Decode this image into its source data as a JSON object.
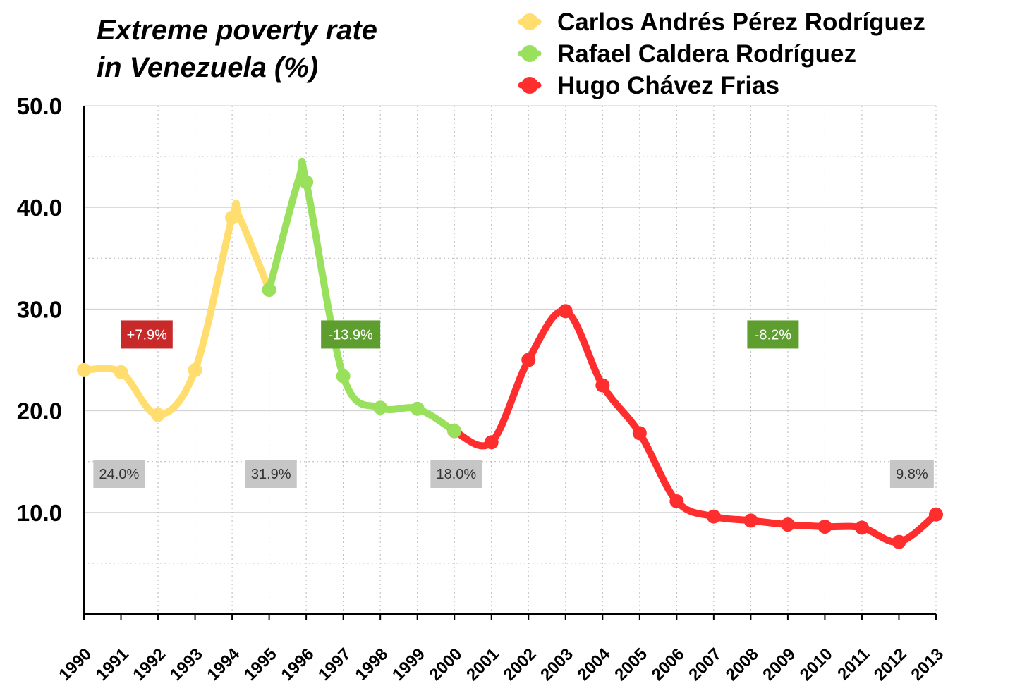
{
  "chart_data": {
    "type": "line",
    "title": "Extreme poverty rate",
    "subtitle": "in Venezuela (%)",
    "x": [
      1990,
      1991,
      1992,
      1993,
      1994,
      1995,
      1996,
      1997,
      1998,
      1999,
      2000,
      2001,
      2002,
      2003,
      2004,
      2005,
      2006,
      2007,
      2008,
      2009,
      2010,
      2011,
      2012,
      2013
    ],
    "x_tick_labels": [
      "1990",
      "1991",
      "1992",
      "1993",
      "1994",
      "1995",
      "1996",
      "1997",
      "1998",
      "1999",
      "2000",
      "2001",
      "2002",
      "2003",
      "2004",
      "2005",
      "2006",
      "2007",
      "2008",
      "2009",
      "2010",
      "2011",
      "2012",
      "2013"
    ],
    "y_tick_labels": [
      "10.0",
      "20.0",
      "30.0",
      "40.0",
      "50.0"
    ],
    "y_ticks": [
      10,
      20,
      30,
      40,
      50
    ],
    "ylim": [
      0,
      50
    ],
    "xlim": [
      1990,
      2013
    ],
    "grid": true,
    "legend_position": "top-right",
    "series": [
      {
        "name": "Carlos Andrés Pérez Rodríguez",
        "color": "#FFDD6E",
        "points": [
          [
            1990,
            24.0
          ],
          [
            1991,
            23.8
          ],
          [
            1992,
            19.6
          ],
          [
            1993,
            24.0
          ],
          [
            1994,
            39.0
          ],
          [
            1995,
            31.9
          ]
        ],
        "extra_peaks": [
          [
            1994.2,
            39.0
          ]
        ]
      },
      {
        "name": "Rafael Caldera Rodríguez",
        "color": "#99E05C",
        "points": [
          [
            1995,
            31.9
          ],
          [
            1995.8,
            42.8
          ],
          [
            1996,
            42.5
          ],
          [
            1997,
            23.4
          ],
          [
            1998,
            20.3
          ],
          [
            1999,
            20.2
          ],
          [
            2000,
            18.0
          ]
        ]
      },
      {
        "name": "Hugo Chávez Frias",
        "color": "#FF2E2E",
        "points": [
          [
            2000,
            18.0
          ],
          [
            2001,
            16.9
          ],
          [
            2002,
            25.0
          ],
          [
            2003,
            29.8
          ],
          [
            2004,
            22.5
          ],
          [
            2005,
            17.8
          ],
          [
            2006,
            11.1
          ],
          [
            2007,
            9.6
          ],
          [
            2008,
            9.2
          ],
          [
            2009,
            8.8
          ],
          [
            2010,
            8.6
          ],
          [
            2011,
            8.5
          ],
          [
            2012,
            7.1
          ],
          [
            2013,
            9.8
          ]
        ]
      }
    ],
    "annotations": [
      {
        "text": "+7.9%",
        "x": 1991.7,
        "y": 27.5,
        "style": "red"
      },
      {
        "text": "-13.9%",
        "x": 1997.2,
        "y": 27.5,
        "style": "green"
      },
      {
        "text": "-8.2%",
        "x": 2008.6,
        "y": 27.5,
        "style": "green"
      },
      {
        "text": "24.0%",
        "x": 1990.95,
        "y": 13.8,
        "style": "gray"
      },
      {
        "text": "31.9%",
        "x": 1995.05,
        "y": 13.8,
        "style": "gray"
      },
      {
        "text": "18.0%",
        "x": 2000.05,
        "y": 13.8,
        "style": "gray"
      },
      {
        "text": "9.8%",
        "x": 2012.35,
        "y": 13.8,
        "style": "gray"
      }
    ],
    "annotation_styles": {
      "red": {
        "fill": "#C82A2A",
        "text": "#ffffff"
      },
      "green": {
        "fill": "#5E9E2F",
        "text": "#ffffff"
      },
      "gray": {
        "fill": "#C6C6C6",
        "text": "#333333"
      }
    }
  }
}
